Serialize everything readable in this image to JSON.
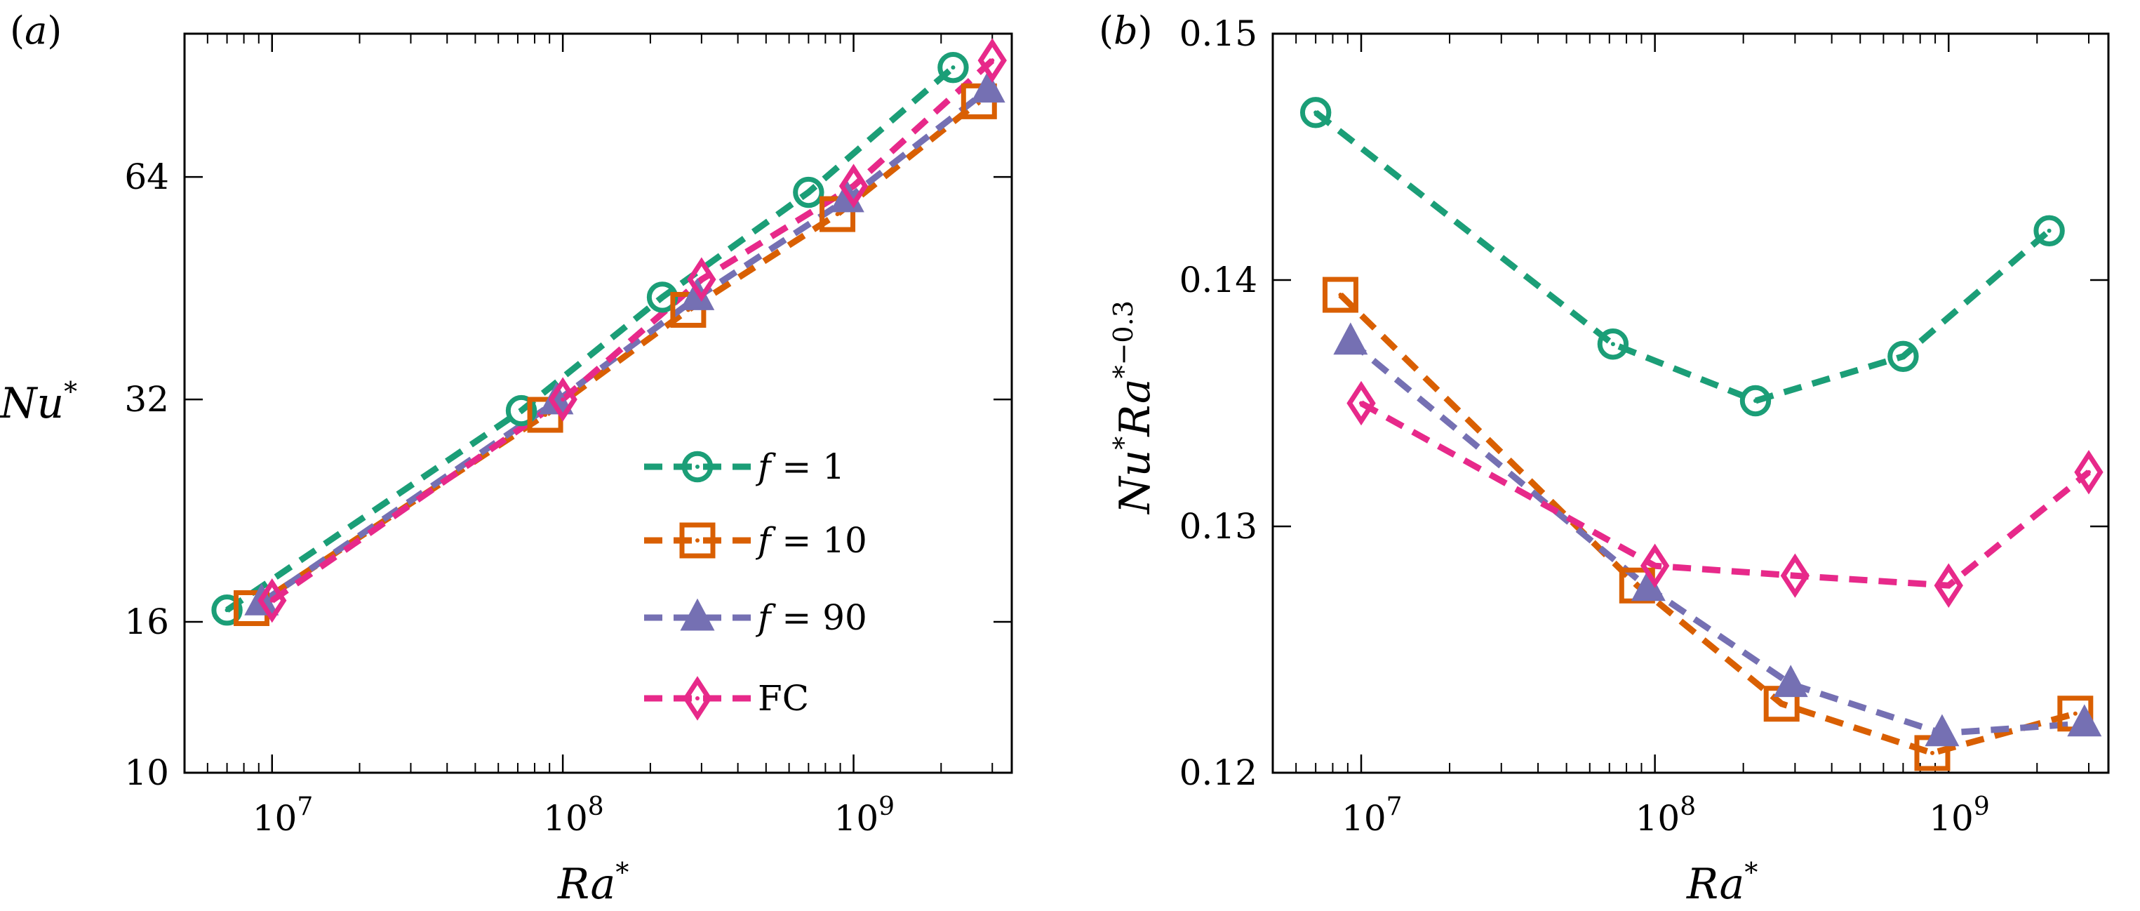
{
  "figure": {
    "colors": {
      "f1": "#1b9e77",
      "f10": "#d95f02",
      "f90": "#7570b3",
      "fc": "#e7298a"
    }
  },
  "chart_data": [
    {
      "type": "line",
      "panel_label": "(a)",
      "panel_paren_open": "(",
      "panel_letter": "a",
      "panel_paren_close": ")",
      "xscale": "log",
      "yscale": "log2",
      "xlabel": "Ra",
      "xlabel_sup": "*",
      "ylabel": "Nu",
      "ylabel_sup": "*",
      "xlim": [
        5000000,
        3500000000
      ],
      "ylim": [
        10,
        100
      ],
      "xticks": [
        {
          "value": 10000000,
          "base": "10",
          "exp": "7"
        },
        {
          "value": 100000000,
          "base": "10",
          "exp": "8"
        },
        {
          "value": 1000000000,
          "base": "10",
          "exp": "9"
        }
      ],
      "yticks": [
        {
          "value": 10,
          "label": "10"
        },
        {
          "value": 16,
          "label": "16"
        },
        {
          "value": 32,
          "label": "32"
        },
        {
          "value": 64,
          "label": "64"
        }
      ],
      "legend": {
        "position": "lower-right",
        "entries": [
          {
            "series": "f1",
            "prefix": "f",
            "suffix": " = 1"
          },
          {
            "series": "f10",
            "prefix": "f",
            "suffix": " = 10"
          },
          {
            "series": "f90",
            "prefix": "f",
            "suffix": " = 90"
          },
          {
            "series": "fc",
            "prefix": "",
            "suffix": "FC"
          }
        ]
      },
      "series": [
        {
          "key": "f1",
          "name": "f = 1",
          "marker": "circle",
          "color": "#1b9e77",
          "x": [
            7000000,
            72000000,
            220000000,
            700000000,
            2200000000
          ],
          "y": [
            16.6,
            30.9,
            44.0,
            61.0,
            90.0
          ]
        },
        {
          "key": "f10",
          "name": "f = 10",
          "marker": "square",
          "color": "#d95f02",
          "x": [
            8500000,
            87000000,
            270000000,
            880000000,
            2700000000
          ],
          "y": [
            16.7,
            30.5,
            42.3,
            57.0,
            81.0
          ]
        },
        {
          "key": "f90",
          "name": "f = 90",
          "marker": "triangle",
          "color": "#7570b3",
          "x": [
            9200000,
            95000000,
            290000000,
            950000000,
            2900000000
          ],
          "y": [
            17.0,
            31.8,
            44.0,
            59.7,
            84.0
          ]
        },
        {
          "key": "fc",
          "name": "FC",
          "marker": "diamond",
          "color": "#e7298a",
          "x": [
            10000000,
            100000000,
            300000000,
            1000000000,
            3000000000
          ],
          "y": [
            17.1,
            32.0,
            46.5,
            62.2,
            92.0
          ]
        }
      ]
    },
    {
      "type": "line",
      "panel_label": "(b)",
      "panel_paren_open": "(",
      "panel_letter": "b",
      "panel_paren_close": ")",
      "xscale": "log",
      "yscale": "linear",
      "xlabel": "Ra",
      "xlabel_sup": "*",
      "ylabel": "Nu",
      "ylabel_sup1": "*",
      "ylabel_mid": "Ra",
      "ylabel_sup2": "*−0.3",
      "xlim": [
        5000000,
        3500000000
      ],
      "ylim": [
        0.12,
        0.15
      ],
      "xticks": [
        {
          "value": 10000000,
          "base": "10",
          "exp": "7"
        },
        {
          "value": 100000000,
          "base": "10",
          "exp": "8"
        },
        {
          "value": 1000000000,
          "base": "10",
          "exp": "9"
        }
      ],
      "yticks": [
        {
          "value": 0.12,
          "label": "0.12"
        },
        {
          "value": 0.13,
          "label": "0.13"
        },
        {
          "value": 0.14,
          "label": "0.14"
        },
        {
          "value": 0.15,
          "label": "0.15"
        }
      ],
      "series": [
        {
          "key": "f1",
          "name": "f = 1",
          "marker": "circle",
          "color": "#1b9e77",
          "x": [
            7000000,
            72000000,
            220000000,
            700000000,
            2200000000
          ],
          "y": [
            0.1468,
            0.1374,
            0.1351,
            0.1369,
            0.142
          ]
        },
        {
          "key": "f10",
          "name": "f = 10",
          "marker": "square",
          "color": "#d95f02",
          "x": [
            8500000,
            87000000,
            270000000,
            880000000,
            2700000000
          ],
          "y": [
            0.1394,
            0.1276,
            0.1228,
            0.1208,
            0.1224
          ]
        },
        {
          "key": "f90",
          "name": "f = 90",
          "marker": "triangle",
          "color": "#7570b3",
          "x": [
            9200000,
            95000000,
            290000000,
            950000000,
            2900000000
          ],
          "y": [
            0.1375,
            0.1275,
            0.1236,
            0.1216,
            0.122
          ]
        },
        {
          "key": "fc",
          "name": "FC",
          "marker": "diamond",
          "color": "#e7298a",
          "x": [
            10000000,
            100000000,
            300000000,
            1000000000,
            3000000000
          ],
          "y": [
            0.135,
            0.1284,
            0.128,
            0.1276,
            0.1322
          ]
        }
      ]
    }
  ]
}
